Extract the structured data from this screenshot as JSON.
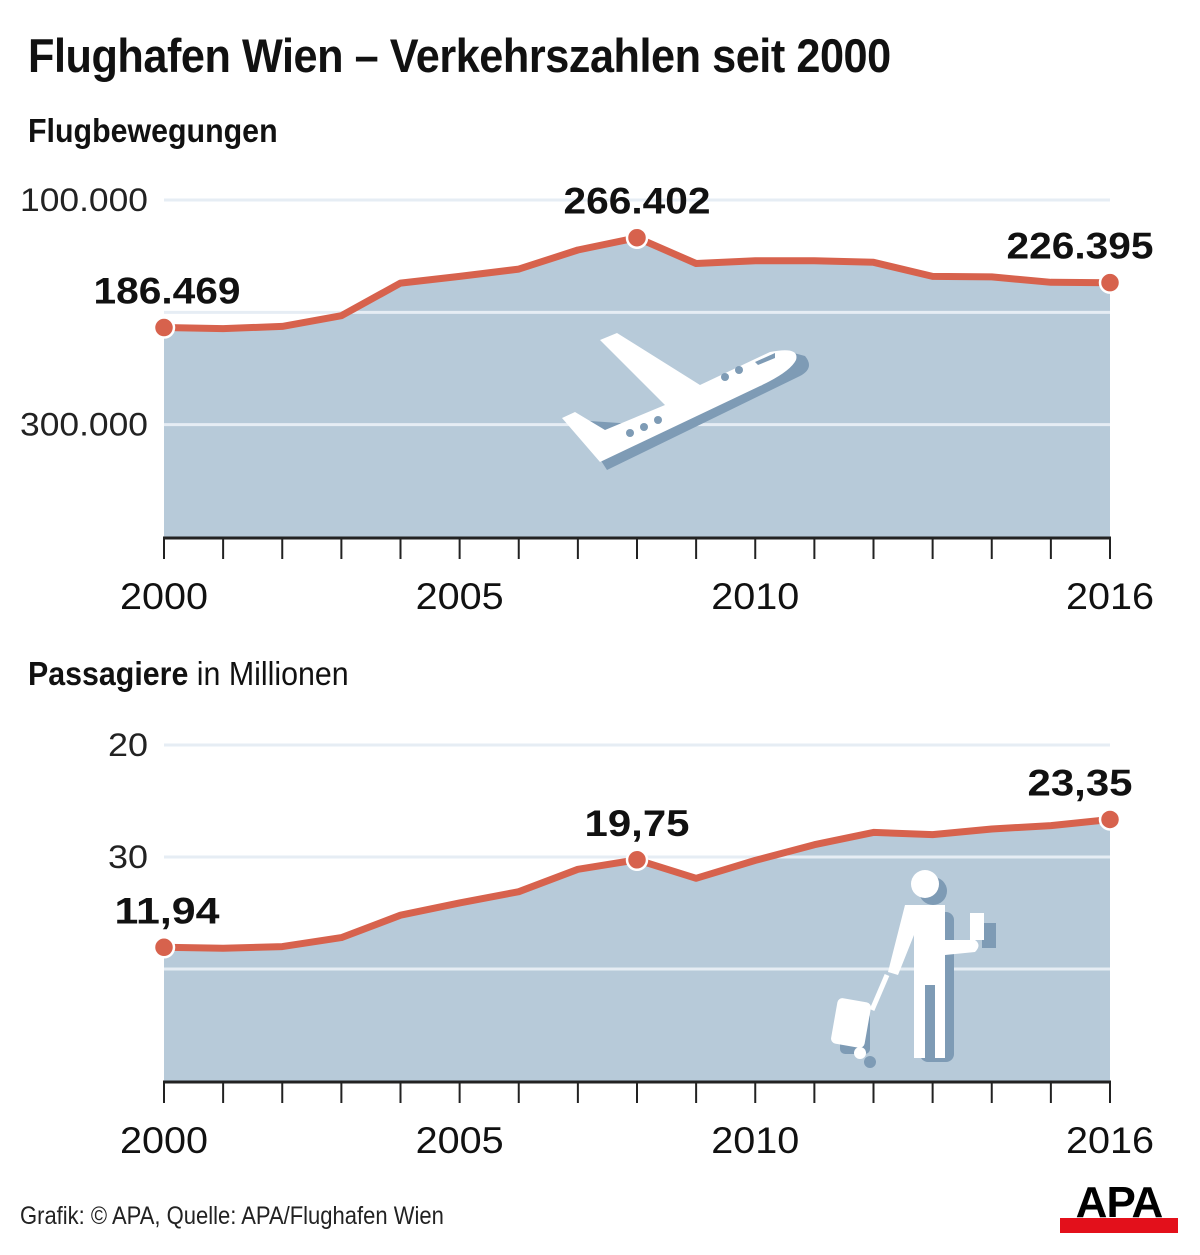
{
  "header": {
    "title": "Flughafen Wien – Verkehrszahlen seit 2000"
  },
  "charts": {
    "movements": {
      "title_bold": "Flugbewegungen",
      "title_regular": "",
      "y_ticks": [
        "300.000",
        "100.000"
      ],
      "x_ticks": [
        "2000",
        "2005",
        "2010",
        "2016"
      ],
      "labels": {
        "first": "186.469",
        "peak": "266.402",
        "last": "226.395"
      },
      "icon": "airplane-takeoff-icon"
    },
    "passengers": {
      "title_bold": "Passagiere",
      "title_regular": " in Millionen",
      "y_ticks": [
        "30",
        "20"
      ],
      "x_ticks": [
        "2000",
        "2005",
        "2010",
        "2016"
      ],
      "labels": {
        "first": "11,94",
        "peak": "19,75",
        "last": "23,35"
      },
      "icon": "traveler-with-suitcase-icon"
    }
  },
  "footer": {
    "credit": "Grafik: © APA, Quelle: APA/Flughafen Wien",
    "logo_text": "APA"
  },
  "colors": {
    "area": "#b7cad9",
    "line": "#d7624d",
    "gridline": "#e3ebf2",
    "icon_shadow": "#7e9bb5",
    "logo_red": "#e3101b"
  },
  "chart_data": [
    {
      "type": "area",
      "title": "Flugbewegungen",
      "xlabel": "",
      "ylabel": "",
      "x": [
        2000,
        2001,
        2002,
        2003,
        2004,
        2005,
        2006,
        2007,
        2008,
        2009,
        2010,
        2011,
        2012,
        2013,
        2014,
        2015,
        2016
      ],
      "series": [
        {
          "name": "Flugbewegungen",
          "values": [
            186469,
            185500,
            187500,
            197000,
            226000,
            232000,
            238500,
            255500,
            266402,
            243500,
            246000,
            246000,
            244500,
            232000,
            231500,
            226700,
            226395
          ]
        }
      ],
      "annotations": [
        {
          "x": 2000,
          "label": "186.469"
        },
        {
          "x": 2008,
          "label": "266.402"
        },
        {
          "x": 2016,
          "label": "226.395"
        }
      ],
      "y_ticks": [
        100000,
        300000
      ],
      "x_ticks": [
        2000,
        2005,
        2010,
        2016
      ],
      "ylim": [
        0,
        300000
      ],
      "grid": true
    },
    {
      "type": "area",
      "title": "Passagiere in Millionen",
      "xlabel": "",
      "ylabel": "Millionen",
      "x": [
        2000,
        2001,
        2002,
        2003,
        2004,
        2005,
        2006,
        2007,
        2008,
        2009,
        2010,
        2011,
        2012,
        2013,
        2014,
        2015,
        2016
      ],
      "series": [
        {
          "name": "Passagiere (Mio.)",
          "values": [
            11.94,
            11.85,
            12.0,
            12.8,
            14.8,
            15.9,
            16.9,
            18.9,
            19.75,
            18.1,
            19.7,
            21.1,
            22.2,
            22.0,
            22.5,
            22.8,
            23.35
          ]
        }
      ],
      "annotations": [
        {
          "x": 2000,
          "label": "11,94"
        },
        {
          "x": 2008,
          "label": "19,75"
        },
        {
          "x": 2016,
          "label": "23,35"
        }
      ],
      "y_ticks": [
        20,
        30
      ],
      "x_ticks": [
        2000,
        2005,
        2010,
        2016
      ],
      "ylim": [
        0,
        30
      ],
      "grid": true
    }
  ]
}
